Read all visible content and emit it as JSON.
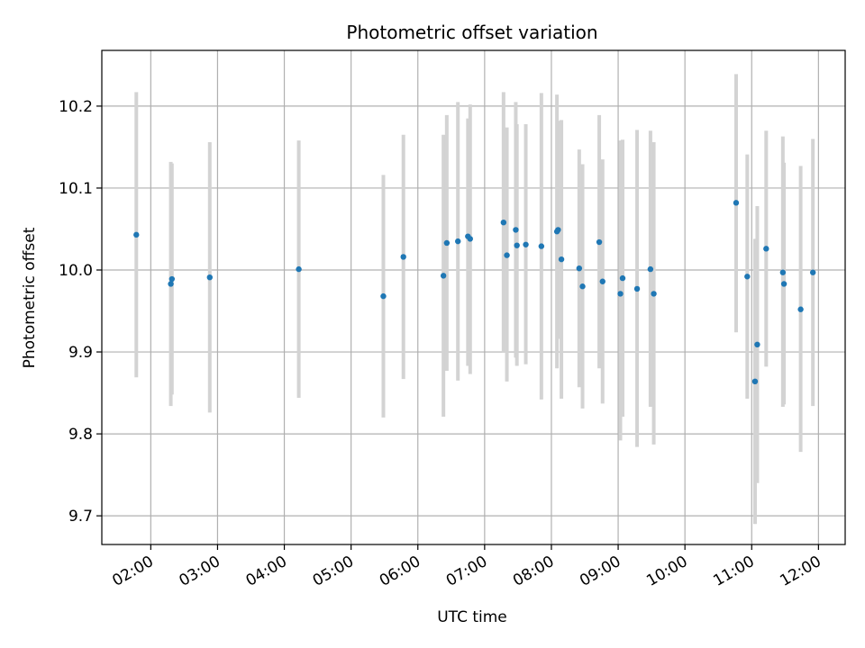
{
  "chart_data": {
    "type": "scatter",
    "title": "Photometric offset variation",
    "xlabel": "UTC time",
    "ylabel": "Photometric offset",
    "grid": true,
    "x_ticks": [
      "02:00",
      "03:00",
      "04:00",
      "05:00",
      "06:00",
      "07:00",
      "08:00",
      "09:00",
      "10:00",
      "11:00",
      "12:00"
    ],
    "y_ticks": [
      9.7,
      9.8,
      9.9,
      10.0,
      10.1,
      10.2
    ],
    "xlim": [
      "01:16",
      "12:24"
    ],
    "ylim": [
      9.665,
      10.268
    ],
    "colors": {
      "points": "#1f77b4",
      "errorbars": "#d3d3d3",
      "grid": "#b0b0b0"
    },
    "series": [
      {
        "points": [
          {
            "x": "01:47",
            "y": 10.043,
            "lo": 9.869,
            "hi": 10.217
          },
          {
            "x": "02:18",
            "y": 9.983,
            "lo": 9.834,
            "hi": 10.132
          },
          {
            "x": "02:19",
            "y": 9.989,
            "lo": 9.848,
            "hi": 10.13
          },
          {
            "x": "02:53",
            "y": 9.991,
            "lo": 9.826,
            "hi": 10.156
          },
          {
            "x": "04:13",
            "y": 10.001,
            "lo": 9.844,
            "hi": 10.158
          },
          {
            "x": "05:29",
            "y": 9.968,
            "lo": 9.82,
            "hi": 10.116
          },
          {
            "x": "05:47",
            "y": 10.016,
            "lo": 9.867,
            "hi": 10.165
          },
          {
            "x": "06:23",
            "y": 9.993,
            "lo": 9.821,
            "hi": 10.165
          },
          {
            "x": "06:26",
            "y": 10.033,
            "lo": 9.877,
            "hi": 10.189
          },
          {
            "x": "06:36",
            "y": 10.035,
            "lo": 9.865,
            "hi": 10.205
          },
          {
            "x": "06:45",
            "y": 10.041,
            "lo": 9.883,
            "hi": 10.185
          },
          {
            "x": "06:47",
            "y": 10.038,
            "lo": 9.873,
            "hi": 10.202
          },
          {
            "x": "07:17",
            "y": 10.058,
            "lo": 9.899,
            "hi": 10.217
          },
          {
            "x": "07:20",
            "y": 10.018,
            "lo": 9.864,
            "hi": 10.174
          },
          {
            "x": "07:28",
            "y": 10.049,
            "lo": 9.893,
            "hi": 10.205
          },
          {
            "x": "07:29",
            "y": 10.03,
            "lo": 9.883,
            "hi": 10.178
          },
          {
            "x": "07:37",
            "y": 10.031,
            "lo": 9.885,
            "hi": 10.178
          },
          {
            "x": "07:51",
            "y": 10.029,
            "lo": 9.842,
            "hi": 10.216
          },
          {
            "x": "08:05",
            "y": 10.047,
            "lo": 9.88,
            "hi": 10.214
          },
          {
            "x": "08:06",
            "y": 10.049,
            "lo": 9.916,
            "hi": 10.182
          },
          {
            "x": "08:09",
            "y": 10.013,
            "lo": 9.843,
            "hi": 10.183
          },
          {
            "x": "08:25",
            "y": 10.002,
            "lo": 9.857,
            "hi": 10.147
          },
          {
            "x": "08:28",
            "y": 9.98,
            "lo": 9.831,
            "hi": 10.129
          },
          {
            "x": "08:43",
            "y": 10.034,
            "lo": 9.88,
            "hi": 10.189
          },
          {
            "x": "08:46",
            "y": 9.986,
            "lo": 9.837,
            "hi": 10.135
          },
          {
            "x": "09:02",
            "y": 9.971,
            "lo": 9.792,
            "hi": 10.158
          },
          {
            "x": "09:04",
            "y": 9.99,
            "lo": 9.821,
            "hi": 10.159
          },
          {
            "x": "09:17",
            "y": 9.977,
            "lo": 9.784,
            "hi": 10.171
          },
          {
            "x": "09:29",
            "y": 10.001,
            "lo": 9.833,
            "hi": 10.17
          },
          {
            "x": "09:32",
            "y": 9.971,
            "lo": 9.787,
            "hi": 10.156
          },
          {
            "x": "10:46",
            "y": 10.082,
            "lo": 9.924,
            "hi": 10.239
          },
          {
            "x": "10:56",
            "y": 9.992,
            "lo": 9.843,
            "hi": 10.141
          },
          {
            "x": "11:03",
            "y": 9.864,
            "lo": 9.69,
            "hi": 10.038
          },
          {
            "x": "11:05",
            "y": 9.909,
            "lo": 9.74,
            "hi": 10.078
          },
          {
            "x": "11:13",
            "y": 10.026,
            "lo": 9.882,
            "hi": 10.17
          },
          {
            "x": "11:28",
            "y": 9.997,
            "lo": 9.833,
            "hi": 10.163
          },
          {
            "x": "11:29",
            "y": 9.983,
            "lo": 9.836,
            "hi": 10.131
          },
          {
            "x": "11:44",
            "y": 9.952,
            "lo": 9.778,
            "hi": 10.127
          },
          {
            "x": "11:55",
            "y": 9.997,
            "lo": 9.834,
            "hi": 10.16
          }
        ]
      }
    ]
  }
}
